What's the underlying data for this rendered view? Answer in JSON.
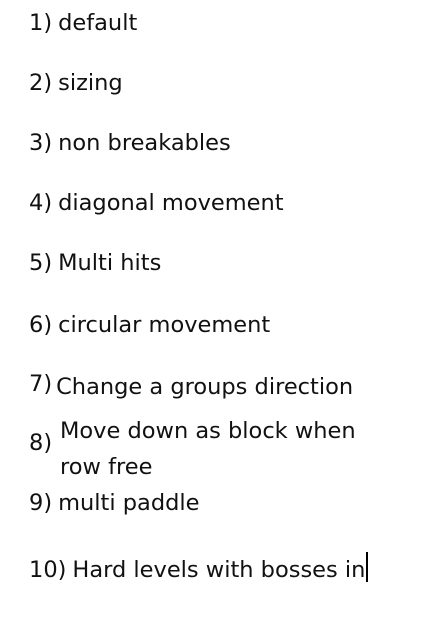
{
  "document": {
    "items": [
      {
        "number": "1)",
        "text": "default"
      },
      {
        "number": "2)",
        "text": "sizing"
      },
      {
        "number": "3)",
        "text": "non breakables"
      },
      {
        "number": "4)",
        "text": "diagonal movement"
      },
      {
        "number": "5)",
        "text": "Multi hits"
      },
      {
        "number": "6)",
        "text": "circular movement"
      },
      {
        "number": "7)",
        "text": "Change a groups direction"
      },
      {
        "number": "8)",
        "text_line1": "Move down as block when",
        "text_line2": "row free"
      },
      {
        "number": "9)",
        "text": "multi paddle"
      },
      {
        "number": "10)",
        "text": "Hard levels with bosses in"
      }
    ]
  }
}
